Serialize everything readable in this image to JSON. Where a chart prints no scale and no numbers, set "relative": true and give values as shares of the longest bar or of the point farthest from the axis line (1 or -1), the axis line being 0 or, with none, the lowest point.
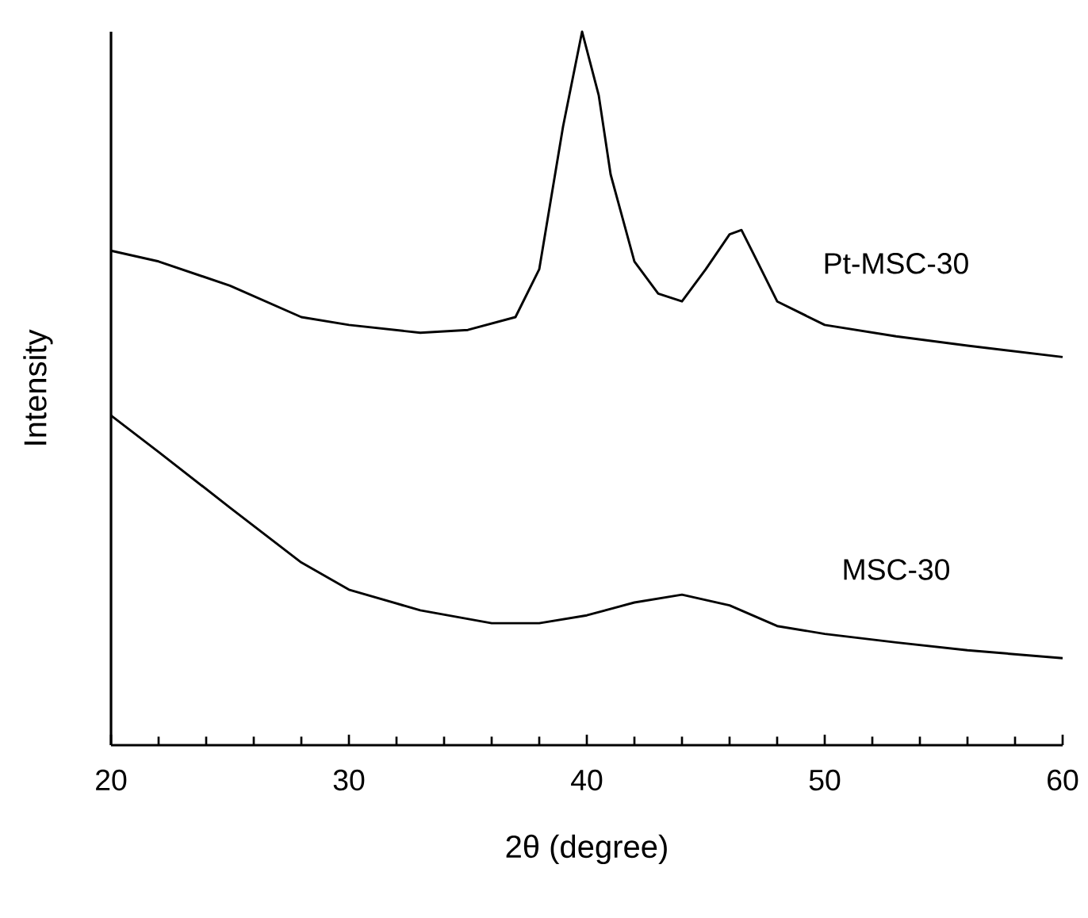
{
  "chart_data": {
    "type": "line",
    "relative": true,
    "xlabel": "2θ (degree)",
    "ylabel": "Intensity",
    "xlim": [
      20,
      60
    ],
    "xticks": [
      20,
      30,
      40,
      50,
      60
    ],
    "grid": false,
    "marker": "none",
    "line_style": "solid",
    "series": [
      {
        "name": "Pt-MSC-30",
        "color": "#000000",
        "x": [
          20,
          22,
          25,
          28,
          30,
          33,
          35,
          37,
          38,
          39,
          39.8,
          40.5,
          41,
          42,
          43,
          44,
          45,
          46,
          46.5,
          47,
          48,
          50,
          53,
          56,
          60
        ],
        "values": [
          0.693,
          0.678,
          0.644,
          0.6,
          0.589,
          0.578,
          0.582,
          0.6,
          0.667,
          0.867,
          1,
          0.911,
          0.8,
          0.678,
          0.633,
          0.622,
          0.667,
          0.716,
          0.722,
          0.689,
          0.622,
          0.589,
          0.573,
          0.56,
          0.544
        ]
      },
      {
        "name": "MSC-30",
        "color": "#000000",
        "x": [
          20,
          22,
          25,
          28,
          30,
          33,
          36,
          38,
          40,
          42,
          44,
          46,
          48,
          50,
          53,
          56,
          60
        ],
        "values": [
          0.462,
          0.411,
          0.333,
          0.256,
          0.218,
          0.189,
          0.171,
          0.171,
          0.182,
          0.2,
          0.211,
          0.196,
          0.167,
          0.156,
          0.144,
          0.133,
          0.122
        ]
      }
    ]
  }
}
